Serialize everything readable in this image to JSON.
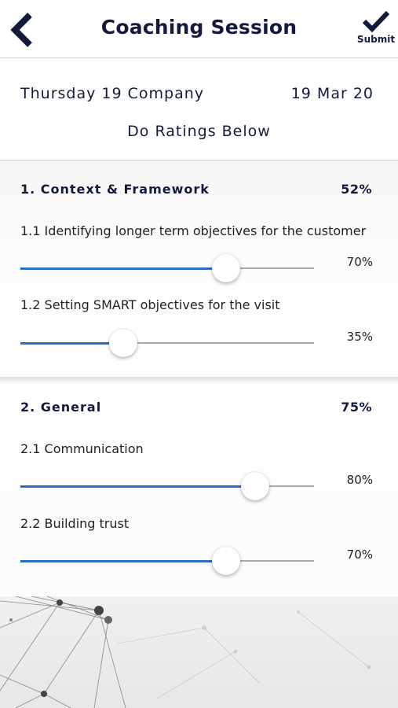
{
  "header": {
    "title": "Coaching Session",
    "back_icon": "chevron-left-icon",
    "submit_icon": "checkmark-icon",
    "submit_label": "Submit"
  },
  "session": {
    "name": "Thursday 19 Company",
    "date": "19 Mar 20",
    "instruction": "Do Ratings Below"
  },
  "sections": [
    {
      "title": "1. Context & Framework",
      "percent": "52%",
      "items": [
        {
          "label": "1.1 Identifying longer term objectives for the customer",
          "value": 70,
          "value_text": "70%"
        },
        {
          "label": "1.2 Setting SMART objectives for the visit",
          "value": 35,
          "value_text": "35%"
        }
      ]
    },
    {
      "title": "2. General",
      "percent": "75%",
      "items": [
        {
          "label": "2.1 Communication",
          "value": 80,
          "value_text": "80%"
        },
        {
          "label": "2.2 Building trust",
          "value": 70,
          "value_text": "70%"
        }
      ]
    }
  ],
  "colors": {
    "accent": "#2b6cc4",
    "text": "#141a3c",
    "track": "#a9a9a9"
  }
}
